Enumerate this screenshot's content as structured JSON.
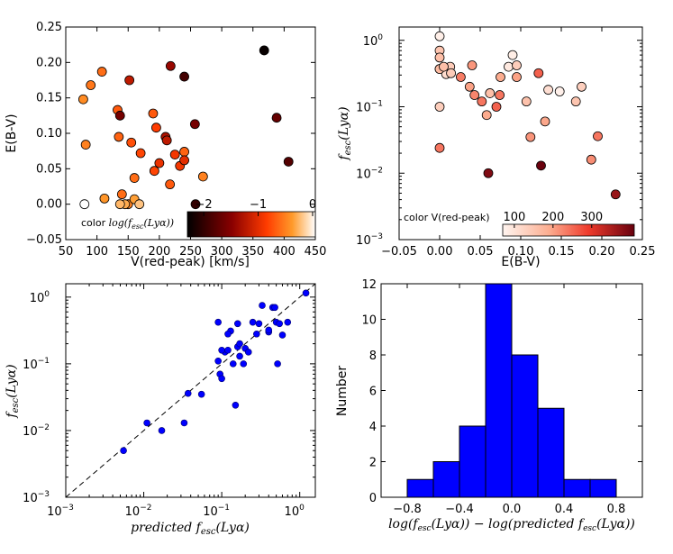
{
  "chart_data": [
    {
      "type": "scatter",
      "panel": "top-left",
      "xlabel": "V(red-peak) [km/s]",
      "ylabel": "E(B-V)",
      "xlim": [
        50,
        450
      ],
      "ylim": [
        -0.05,
        0.25
      ],
      "xticks": [
        "50",
        "100",
        "150",
        "200",
        "250",
        "300",
        "350",
        "400",
        "450"
      ],
      "yticks": [
        "−0.05",
        "0.00",
        "0.05",
        "0.10",
        "0.15",
        "0.20",
        "0.25"
      ],
      "colorbar": {
        "label_prefix": "color ",
        "label_math": "log(f",
        "label_sub": "esc",
        "label_end": "(Lyα))",
        "range": [
          -2.3,
          0.05
        ],
        "ticks": [
          "−2",
          "−1",
          "0"
        ],
        "tick_values": [
          -2,
          -1,
          0
        ],
        "cmap": "gist_heat"
      },
      "x": [
        78,
        90,
        108,
        82,
        133,
        137,
        152,
        135,
        155,
        190,
        218,
        195,
        210,
        240,
        257,
        212,
        225,
        240,
        233,
        170,
        160,
        192,
        200,
        217,
        258,
        270,
        240,
        368,
        388,
        407,
        80,
        112,
        140,
        150,
        160,
        145,
        137,
        168
      ],
      "y": [
        0.148,
        0.168,
        0.187,
        0.084,
        0.133,
        0.125,
        0.175,
        0.095,
        0.087,
        0.128,
        0.195,
        0.108,
        0.095,
        0.18,
        0.113,
        0.09,
        0.07,
        0.074,
        0.054,
        0.072,
        0.037,
        0.047,
        0.058,
        0.028,
        0.0,
        0.039,
        0.062,
        0.217,
        0.122,
        0.06,
        0.0,
        0.008,
        0.014,
        0.0,
        0.007,
        0.0,
        0.0,
        0.0
      ],
      "color_values": [
        -0.45,
        -0.55,
        -0.6,
        -0.5,
        -0.7,
        -1.6,
        -1.2,
        -0.65,
        -0.75,
        -0.7,
        -1.4,
        -0.85,
        -1.3,
        -1.9,
        -1.6,
        -1.2,
        -0.9,
        -0.65,
        -0.9,
        -0.8,
        -0.6,
        -0.8,
        -0.95,
        -0.7,
        -2.0,
        -0.5,
        -1.0,
        -2.25,
        -1.7,
        -1.8,
        0.05,
        -0.4,
        -0.6,
        -0.5,
        -0.35,
        -0.3,
        -0.25,
        -0.2
      ]
    },
    {
      "type": "scatter",
      "panel": "top-right",
      "xlabel": "E(B-V)",
      "ylabel_math": "f",
      "ylabel_sub": "esc",
      "ylabel_end": "(Lyα)",
      "xlim": [
        -0.05,
        0.25
      ],
      "ylim_log": [
        -3,
        0.2
      ],
      "xticks": [
        "−0.05",
        "0.00",
        "0.05",
        "0.10",
        "0.15",
        "0.20",
        "0.25"
      ],
      "yticks": [
        "10",
        "10",
        "10",
        "10"
      ],
      "ytick_exps": [
        "0",
        "-1",
        "-2",
        "-3"
      ],
      "colorbar": {
        "label": "color V(red-peak)",
        "range": [
          70,
          410
        ],
        "ticks": [
          "100",
          "200",
          "300"
        ],
        "tick_values": [
          100,
          200,
          300
        ],
        "cmap": "Reds"
      },
      "x": [
        0.0,
        0.0,
        0.0,
        0.0,
        0.0,
        0.0,
        0.008,
        0.013,
        0.026,
        0.037,
        0.04,
        0.043,
        0.052,
        0.06,
        0.062,
        0.07,
        0.075,
        0.085,
        0.09,
        0.095,
        0.107,
        0.112,
        0.122,
        0.125,
        0.13,
        0.134,
        0.148,
        0.168,
        0.175,
        0.187,
        0.195,
        0.217,
        0.0,
        0.014,
        0.005,
        0.058,
        0.074,
        0.095
      ],
      "y": [
        1.15,
        0.7,
        0.55,
        0.37,
        0.1,
        0.024,
        0.31,
        0.4,
        0.28,
        0.2,
        0.42,
        0.15,
        0.12,
        0.01,
        0.16,
        0.1,
        0.28,
        0.4,
        0.6,
        0.42,
        0.12,
        0.035,
        0.32,
        0.013,
        0.06,
        0.18,
        0.17,
        0.12,
        0.2,
        0.016,
        0.036,
        0.0048,
        0.37,
        0.32,
        0.4,
        0.075,
        0.15,
        0.28
      ],
      "color_values": [
        80,
        150,
        160,
        145,
        135,
        240,
        112,
        140,
        233,
        200,
        210,
        225,
        240,
        388,
        160,
        257,
        190,
        90,
        82,
        137,
        155,
        212,
        258,
        407,
        195,
        108,
        78,
        150,
        133,
        218,
        240,
        368,
        168,
        140,
        160,
        192,
        240,
        200
      ]
    },
    {
      "type": "scatter",
      "panel": "bottom-left",
      "xlabel_math": "predicted f",
      "xlabel_sub": "esc",
      "xlabel_end": "(Lyα)",
      "ylabel_math": "f",
      "ylabel_sub": "esc",
      "ylabel_end": "(Lyα)",
      "xlim_log": [
        -3,
        0.2
      ],
      "ylim_log": [
        -3,
        0.2
      ],
      "xticks": [
        "10",
        "10",
        "10",
        "10"
      ],
      "xtick_exps": [
        "-3",
        "-2",
        "-1",
        "0"
      ],
      "yticks": [
        "10",
        "10",
        "10",
        "10"
      ],
      "ytick_exps": [
        "0",
        "-1",
        "-2",
        "-3"
      ],
      "reference_line": "y = x (dashed)",
      "x": [
        0.0055,
        0.011,
        0.017,
        0.033,
        0.037,
        0.055,
        0.09,
        0.09,
        0.095,
        0.1,
        0.11,
        0.12,
        0.13,
        0.14,
        0.15,
        0.16,
        0.16,
        0.17,
        0.19,
        0.2,
        0.22,
        0.25,
        0.28,
        0.3,
        0.33,
        0.4,
        0.45,
        0.48,
        0.5,
        0.52,
        0.55,
        0.6,
        0.7,
        1.2,
        0.1,
        0.17,
        0.12,
        0.4
      ],
      "y": [
        0.005,
        0.013,
        0.01,
        0.013,
        0.036,
        0.035,
        0.42,
        0.11,
        0.07,
        0.06,
        0.15,
        0.16,
        0.31,
        0.1,
        0.024,
        0.18,
        0.4,
        0.13,
        0.1,
        0.17,
        0.15,
        0.42,
        0.28,
        0.4,
        0.75,
        0.3,
        0.7,
        0.7,
        0.42,
        0.1,
        0.4,
        0.27,
        0.42,
        1.15,
        0.16,
        0.2,
        0.28,
        0.32
      ]
    },
    {
      "type": "bar",
      "panel": "bottom-right",
      "ylabel": "Number",
      "xlabel": "log(f_esc(Lyα)) − log(predicted f_esc(Lyα))",
      "xlabel_p1": "log(f",
      "xlabel_s1": "esc",
      "xlabel_p2": "(Lyα)) − log(predicted f",
      "xlabel_s2": "esc",
      "xlabel_p3": "(Lyα))",
      "xlim": [
        -1.0,
        1.0
      ],
      "ylim": [
        0,
        12
      ],
      "xticks": [
        "−0.8",
        "−0.4",
        "0.0",
        "0.4",
        "0.8"
      ],
      "yticks": [
        "0",
        "2",
        "4",
        "6",
        "8",
        "10",
        "12"
      ],
      "bin_edges": [
        -0.8,
        -0.6,
        -0.4,
        -0.2,
        0.0,
        0.2,
        0.4,
        0.6,
        0.8
      ],
      "values": [
        1,
        2,
        4,
        12,
        8,
        5,
        1,
        1
      ],
      "bar_color": "#0000ff"
    }
  ]
}
